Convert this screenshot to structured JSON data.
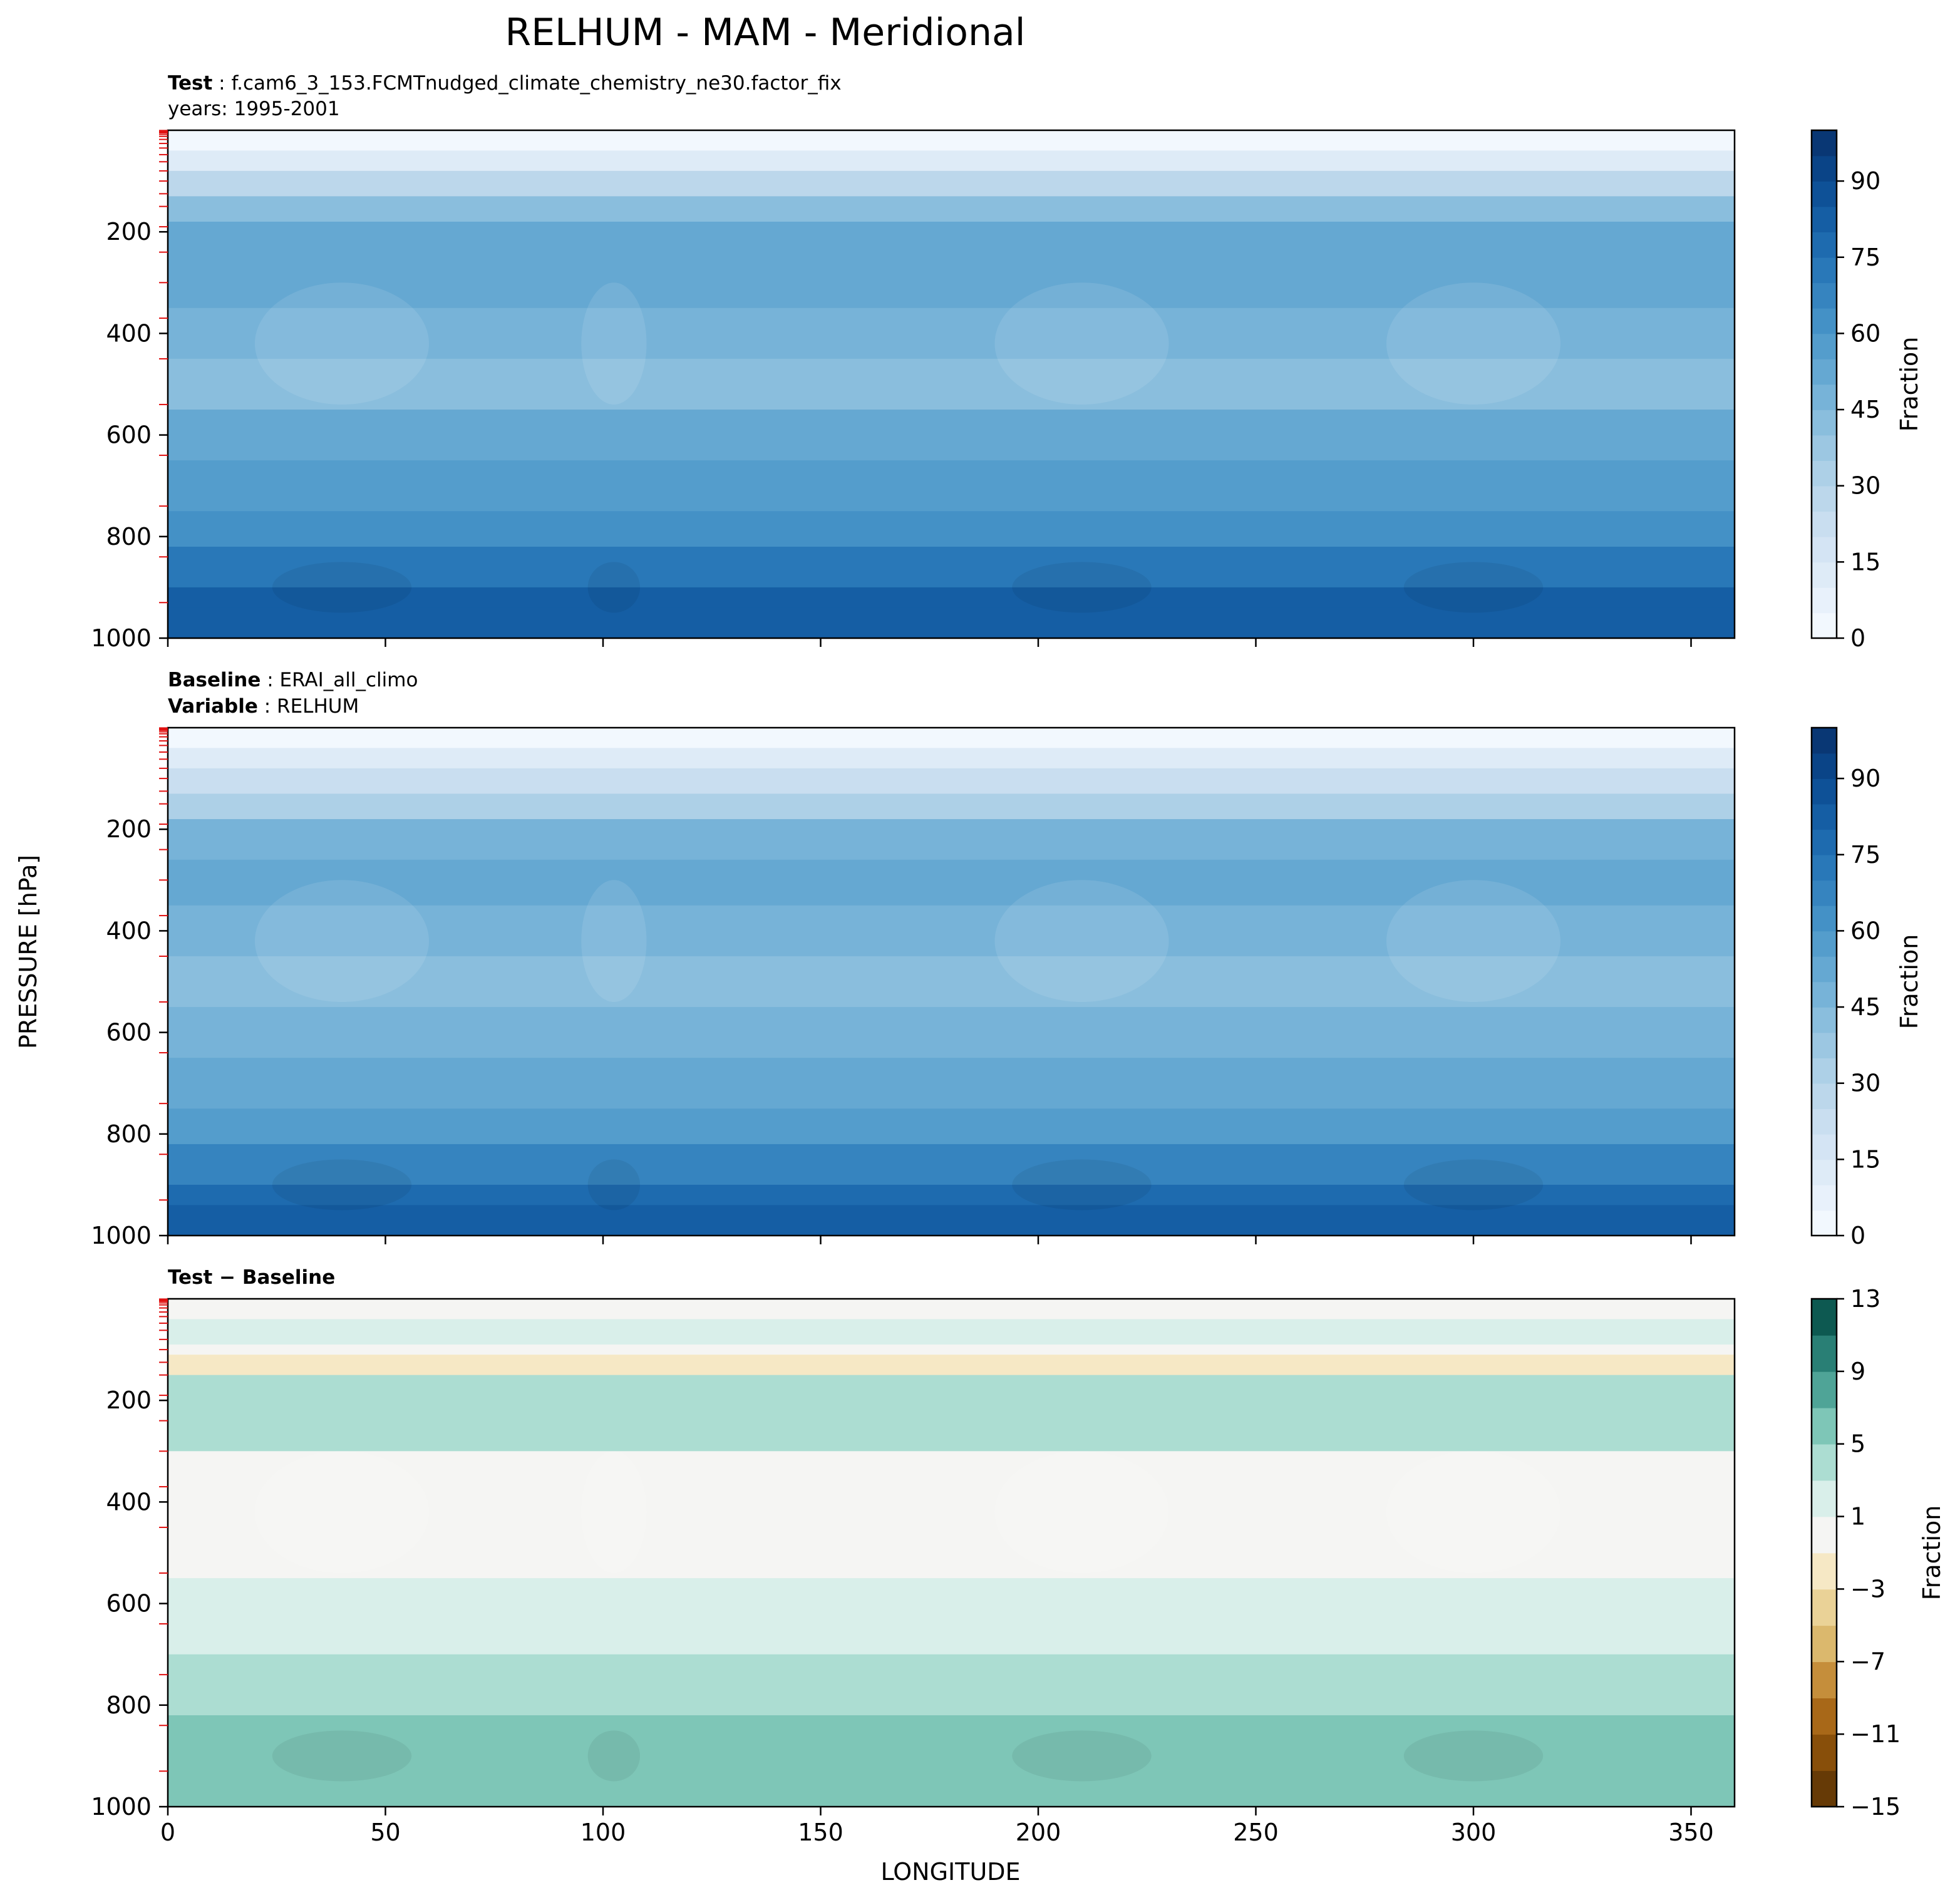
{
  "figure": {
    "title": "RELHUM - MAM - Meridional"
  },
  "chart_data": [
    {
      "type": "heatmap",
      "panel": "test",
      "header_line1_label": "Test",
      "header_line1_value": "f.cam6_3_153.FCMTnudged_climate_chemistry_ne30.factor_fix",
      "header_line2_value": "years: 1995-2001",
      "x_range": [
        0,
        360
      ],
      "y_range": [
        1000,
        0
      ],
      "x_ticks": [
        0,
        50,
        100,
        150,
        200,
        250,
        300,
        350
      ],
      "y_ticks": [
        200,
        400,
        600,
        800,
        1000
      ],
      "x_tick_labels_shown": false,
      "colorbar": {
        "label": "Fraction",
        "range": [
          0,
          100
        ],
        "ticks": [
          0,
          15,
          30,
          45,
          60,
          75,
          90
        ],
        "levels": 20,
        "colormap": "Blues",
        "colors": [
          "#f7fbff",
          "#e3eef9",
          "#cfe1f2",
          "#b5d4e9",
          "#93c3df",
          "#6daed5",
          "#4b97c9",
          "#2f7ebc",
          "#1864aa",
          "#0a4a90",
          "#08306b"
        ]
      },
      "bands": [
        {
          "p": 0,
          "value": 2
        },
        {
          "p": 40,
          "value": 5
        },
        {
          "p": 80,
          "value": 22
        },
        {
          "p": 130,
          "value": 35
        },
        {
          "p": 180,
          "value": 45
        },
        {
          "p": 260,
          "value": 57
        },
        {
          "p": 350,
          "value": 52
        },
        {
          "p": 450,
          "value": 42
        },
        {
          "p": 550,
          "value": 47
        },
        {
          "p": 650,
          "value": 53
        },
        {
          "p": 750,
          "value": 60
        },
        {
          "p": 820,
          "value": 67
        },
        {
          "p": 900,
          "value": 78
        },
        {
          "p": 940,
          "value": 88
        },
        {
          "p": 1000,
          "value": 80
        }
      ]
    },
    {
      "type": "heatmap",
      "panel": "baseline",
      "header_line1_label": "Baseline",
      "header_line1_value": "ERAI_all_climo",
      "header_line2_label": "Variable",
      "header_line2_value": "RELHUM",
      "x_range": [
        0,
        360
      ],
      "y_range": [
        1000,
        0
      ],
      "x_ticks": [
        0,
        50,
        100,
        150,
        200,
        250,
        300,
        350
      ],
      "y_ticks": [
        200,
        400,
        600,
        800,
        1000
      ],
      "x_tick_labels_shown": false,
      "colorbar": {
        "label": "Fraction",
        "range": [
          0,
          100
        ],
        "ticks": [
          0,
          15,
          30,
          45,
          60,
          75,
          90
        ],
        "levels": 20,
        "colormap": "Blues",
        "colors": [
          "#f7fbff",
          "#e3eef9",
          "#cfe1f2",
          "#b5d4e9",
          "#93c3df",
          "#6daed5",
          "#4b97c9",
          "#2f7ebc",
          "#1864aa",
          "#0a4a90",
          "#08306b"
        ]
      },
      "bands": [
        {
          "p": 0,
          "value": 2
        },
        {
          "p": 40,
          "value": 5
        },
        {
          "p": 80,
          "value": 18
        },
        {
          "p": 130,
          "value": 28
        },
        {
          "p": 180,
          "value": 38
        },
        {
          "p": 260,
          "value": 52
        },
        {
          "p": 350,
          "value": 50
        },
        {
          "p": 450,
          "value": 44
        },
        {
          "p": 550,
          "value": 45
        },
        {
          "p": 650,
          "value": 50
        },
        {
          "p": 750,
          "value": 55
        },
        {
          "p": 820,
          "value": 62
        },
        {
          "p": 900,
          "value": 72
        },
        {
          "p": 940,
          "value": 83
        },
        {
          "p": 1000,
          "value": 78
        }
      ]
    },
    {
      "type": "heatmap",
      "panel": "difference",
      "header_line1_label": "Test − Baseline",
      "x_range": [
        0,
        360
      ],
      "y_range": [
        1000,
        0
      ],
      "x_ticks": [
        0,
        50,
        100,
        150,
        200,
        250,
        300,
        350
      ],
      "y_ticks": [
        200,
        400,
        600,
        800,
        1000
      ],
      "xlabel": "LONGITUDE",
      "x_tick_labels_shown": true,
      "colorbar": {
        "label": "Fraction",
        "range": [
          -15,
          13
        ],
        "ticks": [
          -15,
          -11,
          -7,
          -3,
          1,
          5,
          9,
          13
        ],
        "levels": 14,
        "colormap": "BrBG",
        "colors": [
          "#543005",
          "#7a4607",
          "#9d5c0e",
          "#bf812d",
          "#d8b365",
          "#e8cf92",
          "#f6e8c3",
          "#f5f5f5",
          "#d6eee9",
          "#a3d9cd",
          "#72bfaf",
          "#3f978b",
          "#1a7066",
          "#01463e"
        ]
      },
      "bands": [
        {
          "p": 0,
          "value": 0
        },
        {
          "p": 40,
          "value": 0
        },
        {
          "p": 90,
          "value": 2
        },
        {
          "p": 110,
          "value": -3
        },
        {
          "p": 150,
          "value": 0
        },
        {
          "p": 220,
          "value": 6
        },
        {
          "p": 300,
          "value": 0
        },
        {
          "p": 400,
          "value": -1
        },
        {
          "p": 550,
          "value": 0
        },
        {
          "p": 700,
          "value": 3
        },
        {
          "p": 820,
          "value": 5
        },
        {
          "p": 920,
          "value": 6
        },
        {
          "p": 1000,
          "value": 5
        }
      ]
    }
  ],
  "shared": {
    "ylabel": "PRESSURE [hPa]"
  }
}
